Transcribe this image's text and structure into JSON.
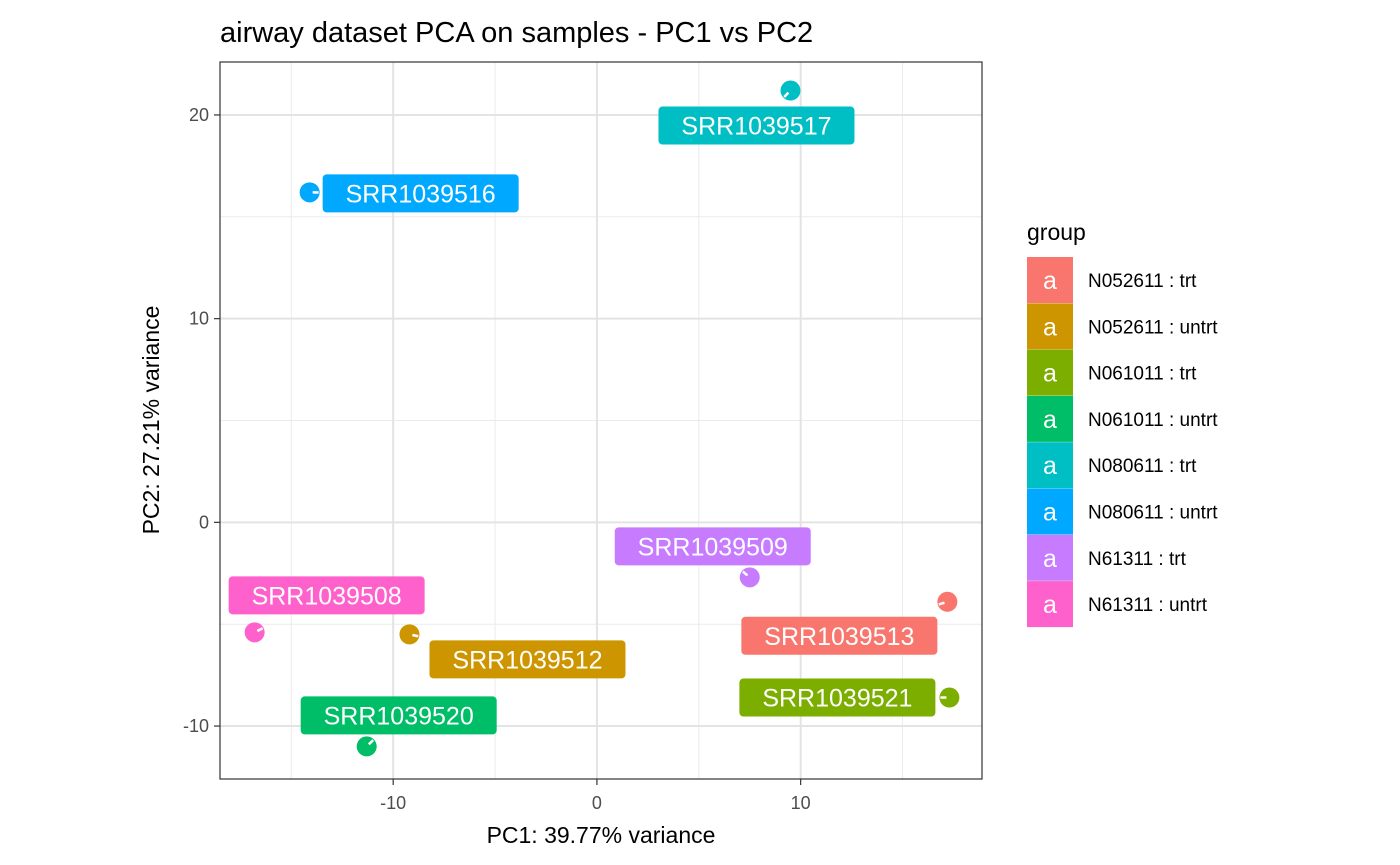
{
  "chart_data": {
    "type": "scatter",
    "title": "airway dataset PCA on samples - PC1 vs PC2",
    "xlabel": "PC1: 39.77% variance",
    "ylabel": "PC2: 27.21% variance",
    "xlim": [
      -18.5,
      18.9
    ],
    "ylim": [
      -12.6,
      22.6
    ],
    "xticks": [
      -10,
      0,
      10
    ],
    "yticks": [
      -10,
      0,
      10,
      20
    ],
    "grid": true,
    "legend": {
      "title": "group",
      "placement": "right",
      "key_glyph": "a",
      "items": [
        {
          "label": "N052611 : trt",
          "color": "#F8766D"
        },
        {
          "label": "N052611 : untrt",
          "color": "#CD9600"
        },
        {
          "label": "N061011 : trt",
          "color": "#7CAE00"
        },
        {
          "label": "N061011 : untrt",
          "color": "#00BE67"
        },
        {
          "label": "N080611 : trt",
          "color": "#00BFC4"
        },
        {
          "label": "N080611 : untrt",
          "color": "#00A9FF"
        },
        {
          "label": "N61311 : trt",
          "color": "#C77CFF"
        },
        {
          "label": "N61311 : untrt",
          "color": "#FF61CC"
        }
      ]
    },
    "points": [
      {
        "label": "SRR1039508",
        "group": "N61311 : untrt",
        "x": -16.8,
        "y": -5.4
      },
      {
        "label": "SRR1039509",
        "group": "N61311 : trt",
        "x": 7.5,
        "y": -2.7
      },
      {
        "label": "SRR1039512",
        "group": "N052611 : untrt",
        "x": -9.2,
        "y": -5.5
      },
      {
        "label": "SRR1039513",
        "group": "N052611 : trt",
        "x": 17.2,
        "y": -3.9
      },
      {
        "label": "SRR1039516",
        "group": "N080611 : untrt",
        "x": -14.1,
        "y": 16.2
      },
      {
        "label": "SRR1039517",
        "group": "N080611 : trt",
        "x": 9.5,
        "y": 21.2
      },
      {
        "label": "SRR1039520",
        "group": "N061011 : untrt",
        "x": -11.3,
        "y": -11.0
      },
      {
        "label": "SRR1039521",
        "group": "N061011 : trt",
        "x": 17.3,
        "y": -8.6
      }
    ]
  }
}
